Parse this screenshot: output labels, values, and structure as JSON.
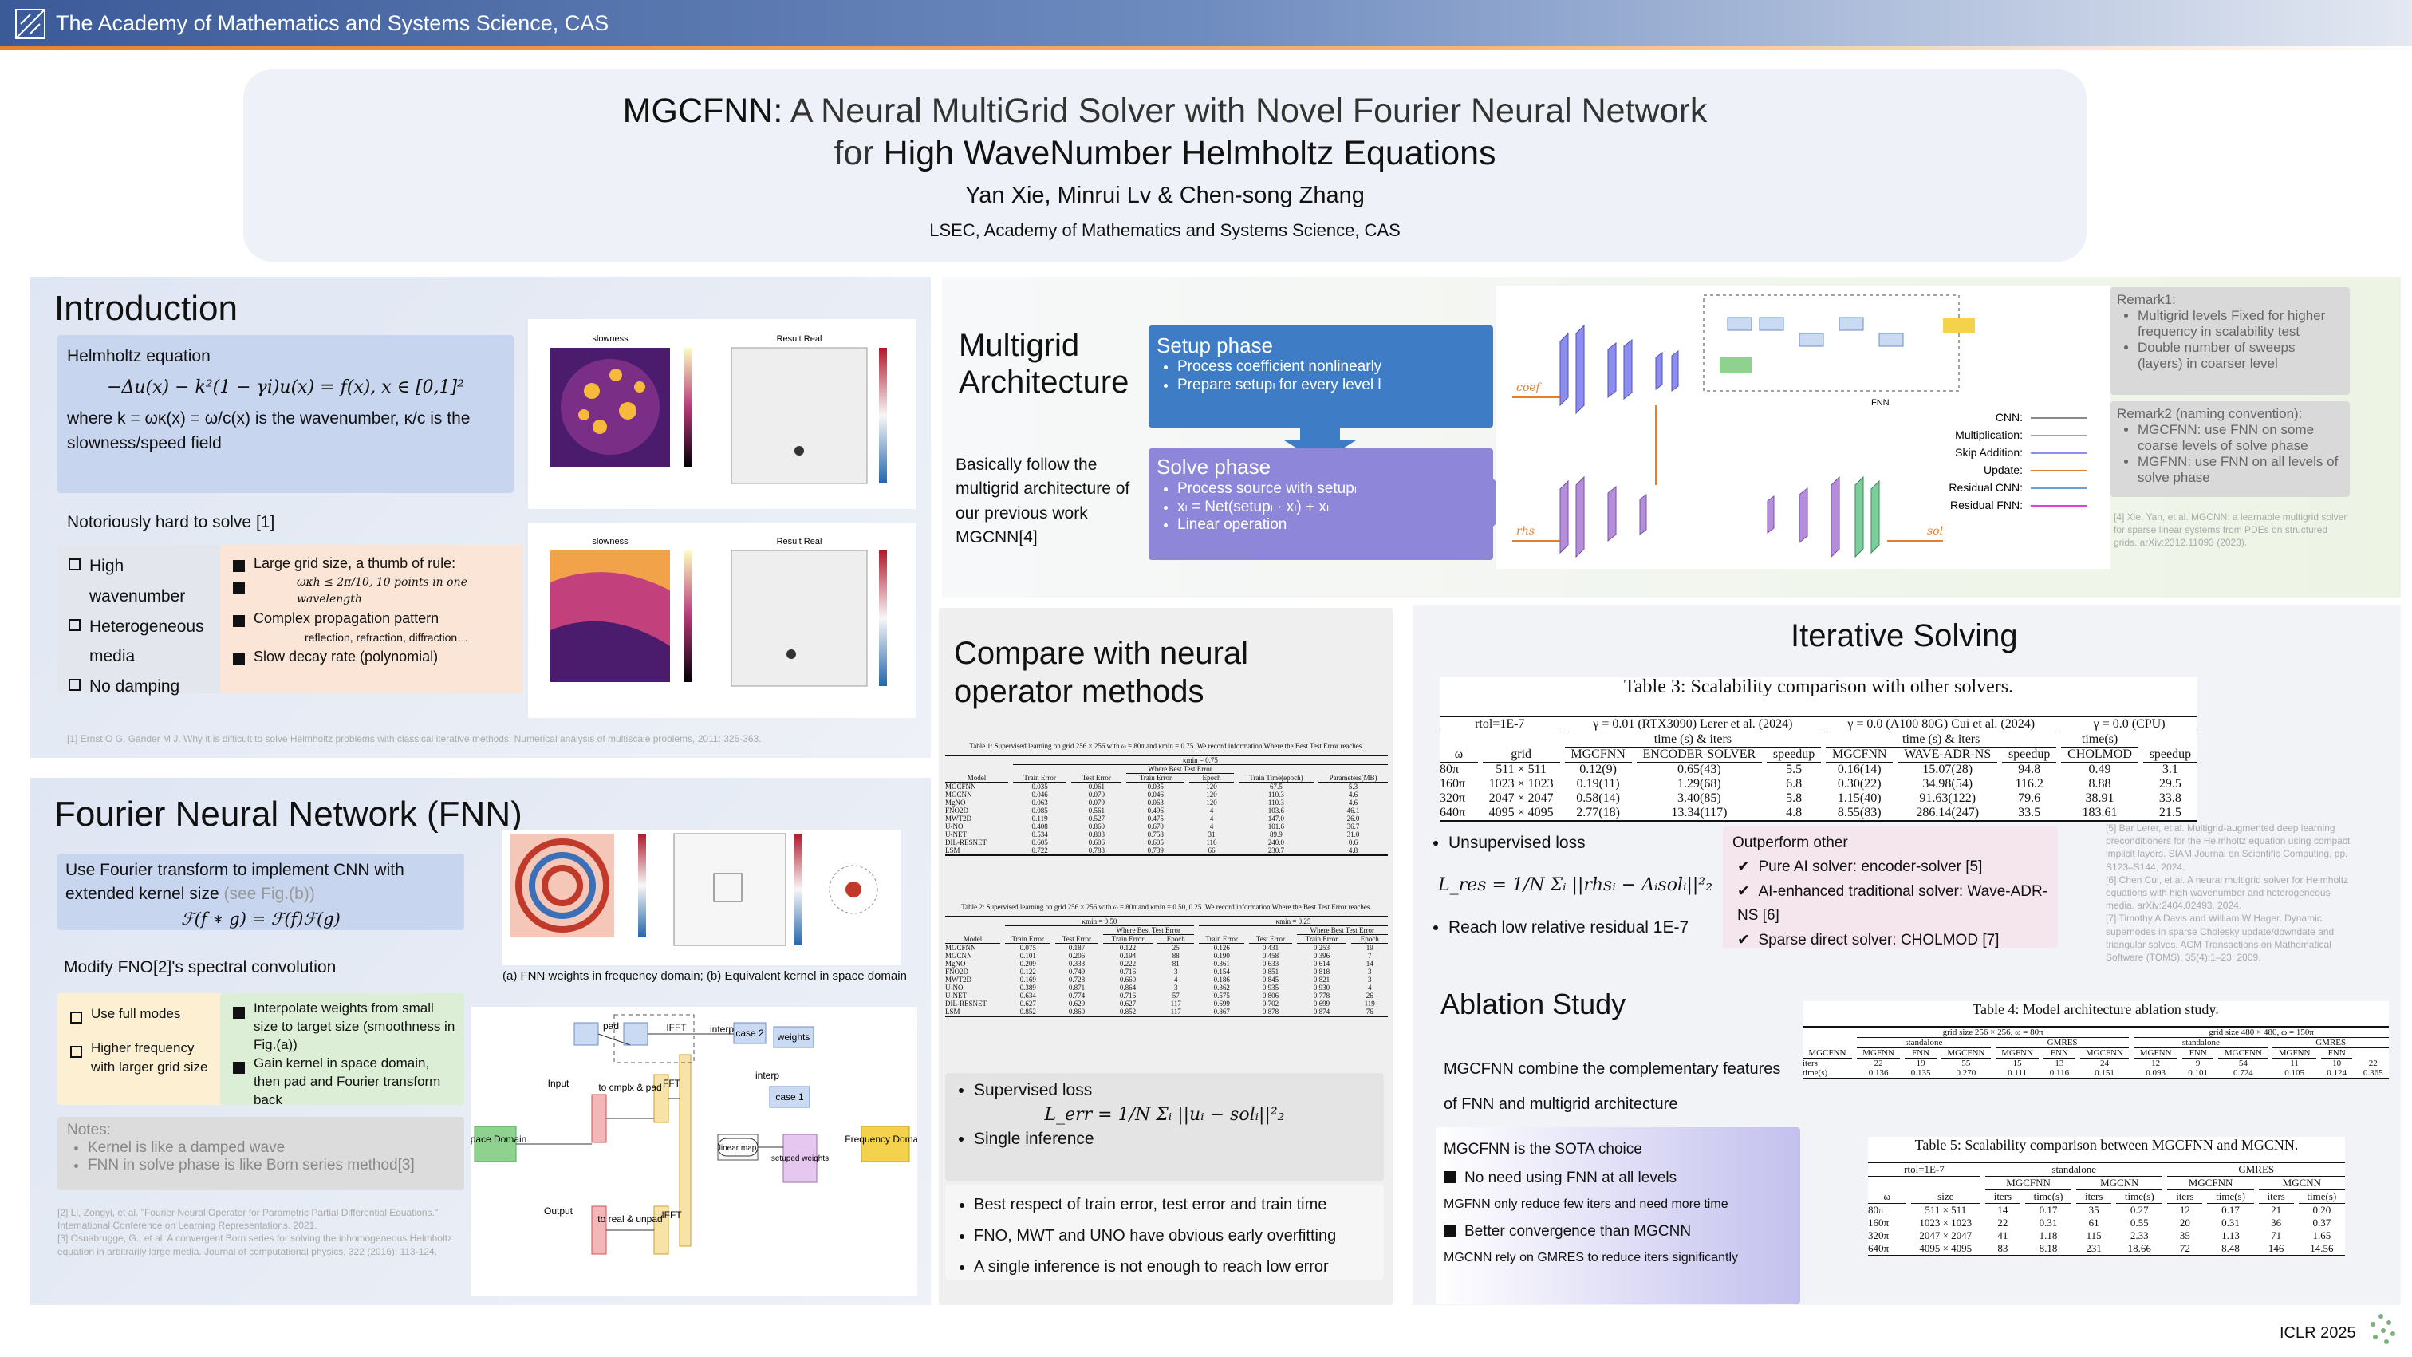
{
  "header": {
    "institution": "The Academy of Mathematics and Systems Science, CAS"
  },
  "title": {
    "line1_name": "MGCFNN:",
    "line1_rest": "A Neural MultiGrid Solver with Novel Fourier Neural Network",
    "line2_prefix": "for",
    "line2_emph": "High WaveNumber Helmholtz Equations",
    "authors": "Yan Xie, Minrui Lv & Chen-song Zhang",
    "affiliation": "LSEC, Academy of Mathematics and Systems Science, CAS"
  },
  "introduction": {
    "heading": "Introduction",
    "eq_label": "Helmholtz equation",
    "equation": "−Δu(x) − k²(1 − γi)u(x) = f(x), x ∈ [0,1]²",
    "where": "where k = ωκ(x) = ω/c(x) is the wavenumber, κ/c is the slowness/speed field",
    "hard": "Notoriously hard to solve [1]",
    "hard_items": [
      "High wavenumber",
      "Heterogeneous media",
      "No damping"
    ],
    "reasons": [
      "Large grid size, a thumb of rule:",
      "Complex propagation pattern",
      "Slow decay rate (polynomial)"
    ],
    "reason_rule": "ωκh ≤ 2π/10, 10 points in one wavelength",
    "reason_detail": "reflection, refraction, diffraction…",
    "plot_titles": [
      "slowness",
      "Result Real",
      "slowness",
      "Result Real"
    ],
    "ref": "[1] Ernst O G, Gander M J. Why it is difficult to solve Helmholtz problems with classical iterative methods. Numerical analysis of multiscale problems, 2011: 325-363."
  },
  "fnn": {
    "heading": "Fourier Neural Network (FNN)",
    "box1": "Use Fourier transform to implement CNN with extended kernel size",
    "box1_ref": "(see Fig.(b))",
    "equation": "ℱ(f ∗ g) = ℱ(f)ℱ(g)",
    "modify": "Modify FNO[2]'s spectral convolution",
    "left_items": [
      "Use full modes",
      "Higher frequency with larger grid size"
    ],
    "right_items": [
      "Interpolate weights from small size to target size (smoothness in Fig.(a))",
      "Gain kernel in space domain, then pad and Fourier transform back"
    ],
    "caption": "(a) FNN weights in frequency domain; (b) Equivalent kernel in space domain",
    "notes_title": "Notes:",
    "notes": [
      "Kernel is like a damped wave",
      "FNN in solve phase is like Born series method[3]"
    ],
    "refs": [
      "[2] Li, Zongyi, et al. \"Fourier Neural Operator for Parametric Partial Differential Equations.\" International Conference on Learning Representations. 2021.",
      "[3] Osnabrugge, G., et al. A convergent Born series for solving the inhomogeneous Helmholtz equation in arbitrarily large media. Journal of computational physics, 322 (2016): 113-124."
    ],
    "diagram": {
      "input": "Input",
      "to_cmplx": "to cmplx & pad",
      "fft": "FFT",
      "pad": "pad",
      "ifft_top": "IFFT",
      "interp_top": "interp",
      "case2": "case 2",
      "weights": "weights",
      "interp_mid": "interp",
      "case1": "case 1",
      "linear_map": "linear map",
      "setuped": "setuped weights",
      "output": "Output",
      "to_real": "to real & unpad",
      "ifft_bottom": "IFFT",
      "space": "Space Domain",
      "frequency": "Frequency Domain"
    }
  },
  "multigrid": {
    "heading": "Multigrid Architecture",
    "text": "Basically follow the multigrid architecture of our previous work MGCNN[4]",
    "setup_title": "Setup phase",
    "setup_items": [
      "Process coefficient nonlinearly",
      "Prepare setupₗ for every level l"
    ],
    "solve_title": "Solve phase",
    "solve_items": [
      "Process source with setupₗ",
      "xₗ = Net(setupₗ · xₗ) + xₗ",
      "Linear operation"
    ],
    "inputs": [
      "coef",
      "rhs",
      "sol"
    ],
    "fnn_label": "FNN",
    "legend": [
      "CNN:",
      "Multiplication:",
      "Skip Addition:",
      "Update:",
      "Residual CNN:",
      "Residual FNN:"
    ],
    "remark1_title": "Remark1:",
    "remark1_items": [
      "Multigrid levels Fixed for higher frequency in scalability test",
      "Double number of sweeps (layers) in coarser level"
    ],
    "remark2_title": "Remark2 (naming convention):",
    "remark2_items": [
      "MGCFNN: use FNN on some coarse levels of solve phase",
      "MGFNN: use FNN on all levels of solve phase"
    ],
    "ref": "[4] Xie, Yan, et al. MGCNN: a learnable multigrid solver for sparse linear systems from PDEs on structured grids. arXiv:2312.11093 (2023)."
  },
  "compare": {
    "heading": "Compare with neural operator methods",
    "table1": {
      "caption": "Table 1: Supervised learning on grid 256 × 256 with ω = 80π and κmin = 0.75. We record information Where the Best Test Error reaches.",
      "head": [
        [
          "κmin = 0.75"
        ],
        [
          "Where Best Test Error"
        ],
        [
          "Model",
          "Train Error",
          "Test Error",
          "Train Error",
          "Epoch",
          "Train Time(epoch)",
          "Parameters(MB)"
        ]
      ],
      "rows": [
        [
          "MGCFNN",
          "0.035",
          "0.061",
          "0.035",
          "120",
          "67.5",
          "5.3"
        ],
        [
          "MGCNN",
          "0.046",
          "0.070",
          "0.046",
          "120",
          "110.3",
          "4.6"
        ],
        [
          "MgNO",
          "0.063",
          "0.079",
          "0.063",
          "120",
          "110.3",
          "4.6"
        ],
        [
          "FNO2D",
          "0.085",
          "0.561",
          "0.496",
          "4",
          "103.6",
          "46.1"
        ],
        [
          "MWT2D",
          "0.119",
          "0.527",
          "0.475",
          "4",
          "147.0",
          "26.0"
        ],
        [
          "U-NO",
          "0.408",
          "0.860",
          "0.670",
          "4",
          "101.6",
          "36.7"
        ],
        [
          "U-NET",
          "0.534",
          "0.803",
          "0.758",
          "31",
          "89.9",
          "31.0"
        ],
        [
          "DIL-RESNET",
          "0.605",
          "0.606",
          "0.605",
          "116",
          "240.0",
          "0.6"
        ],
        [
          "LSM",
          "0.722",
          "0.783",
          "0.739",
          "66",
          "230.7",
          "4.8"
        ]
      ]
    },
    "table2": {
      "caption": "Table 2: Supervised learning on grid 256 × 256 with ω = 80π and κmin = 0.50, 0.25. We record information Where the Best Test Error reaches.",
      "head": [
        [
          "κmin = 0.50",
          "κmin = 0.25"
        ],
        [
          "Where Best Test Error",
          "Where Best Test Error"
        ],
        [
          "Model",
          "Train Error",
          "Test Error",
          "Train Error",
          "Epoch",
          "Train Error",
          "Test Error",
          "Train Error",
          "Epoch"
        ]
      ],
      "rows": [
        [
          "MGCFNN",
          "0.075",
          "0.187",
          "0.122",
          "25",
          "0.126",
          "0.431",
          "0.253",
          "19"
        ],
        [
          "MGCNN",
          "0.101",
          "0.206",
          "0.194",
          "88",
          "0.190",
          "0.458",
          "0.396",
          "7"
        ],
        [
          "MgNO",
          "0.209",
          "0.333",
          "0.222",
          "81",
          "0.361",
          "0.633",
          "0.614",
          "14"
        ],
        [
          "FNO2D",
          "0.122",
          "0.749",
          "0.716",
          "3",
          "0.154",
          "0.851",
          "0.818",
          "3"
        ],
        [
          "MWT2D",
          "0.169",
          "0.728",
          "0.660",
          "4",
          "0.186",
          "0.845",
          "0.821",
          "3"
        ],
        [
          "U-NO",
          "0.389",
          "0.871",
          "0.864",
          "3",
          "0.362",
          "0.935",
          "0.930",
          "4"
        ],
        [
          "U-NET",
          "0.634",
          "0.774",
          "0.716",
          "57",
          "0.575",
          "0.806",
          "0.778",
          "26"
        ],
        [
          "DIL-RESNET",
          "0.627",
          "0.629",
          "0.627",
          "117",
          "0.699",
          "0.702",
          "0.699",
          "119"
        ],
        [
          "LSM",
          "0.852",
          "0.860",
          "0.852",
          "117",
          "0.867",
          "0.878",
          "0.874",
          "76"
        ]
      ]
    },
    "supervised": "Supervised loss",
    "loss": "L_err = 1/N Σᵢ ||uᵢ − solᵢ||²₂",
    "single": "Single inference",
    "bullets": [
      "Best respect of train error, test error and train time",
      "FNO, MWT and UNO have obvious early overfitting",
      "A single inference is not enough to reach low error"
    ]
  },
  "iterative": {
    "heading": "Iterative Solving",
    "table3": {
      "caption": "Table 3: Scalability comparison with other solvers.",
      "head": [
        [
          "rtol=1E-7",
          "γ = 0.01 (RTX3090) Lerer et al. (2024)",
          "γ = 0.0 (A100 80G) Cui et al. (2024)",
          "γ = 0.0 (CPU)"
        ],
        [
          "time (s) & iters",
          "time (s) & iters",
          "time(s)"
        ],
        [
          "ω",
          "grid",
          "MGCFNN",
          "ENCODER-SOLVER",
          "speedup",
          "MGCFNN",
          "WAVE-ADR-NS",
          "speedup",
          "CHOLMOD",
          "speedup"
        ]
      ],
      "rows": [
        [
          "80π",
          "511 × 511",
          "0.12(9)",
          "0.65(43)",
          "5.5",
          "0.16(14)",
          "15.07(28)",
          "94.8",
          "0.49",
          "3.1"
        ],
        [
          "160π",
          "1023 × 1023",
          "0.19(11)",
          "1.29(68)",
          "6.8",
          "0.30(22)",
          "34.98(54)",
          "116.2",
          "8.88",
          "29.5"
        ],
        [
          "320π",
          "2047 × 2047",
          "0.58(14)",
          "3.40(85)",
          "5.8",
          "1.15(40)",
          "91.63(122)",
          "79.6",
          "38.91",
          "33.8"
        ],
        [
          "640π",
          "4095 × 4095",
          "2.77(18)",
          "13.34(117)",
          "4.8",
          "8.55(83)",
          "286.14(247)",
          "33.5",
          "183.61",
          "21.5"
        ]
      ]
    },
    "unsupervised": "Unsupervised loss",
    "loss": "L_res = 1/N Σᵢ ||rhsᵢ − Aᵢsolᵢ||²₂",
    "reach": "Reach low relative residual 1E-7",
    "outperform_title": "Outperform other",
    "outperform_items": [
      "Pure AI solver: encoder-solver [5]",
      "AI-enhanced traditional solver: Wave-ADR-NS [6]",
      "Sparse direct solver: CHOLMOD [7]"
    ],
    "refs": [
      "[5] Bar Lerer, et al. Multigrid-augmented deep learning preconditioners for the Helmholtz equation using compact implicit layers. SIAM Journal on Scientific Computing, pp. S123–S144, 2024.",
      "[6] Chen Cui, et al. A neural multigrid solver for Helmholtz equations with high wavenumber and heterogeneous media. arXiv:2404.02493, 2024.",
      "[7] Timothy A Davis and William W Hager. Dynamic supernodes in sparse Cholesky update/downdate and triangular solves. ACM Transactions on Mathematical Software (TOMS), 35(4):1–23, 2009."
    ]
  },
  "ablation": {
    "heading": "Ablation Study",
    "text": "MGCFNN combine the complementary features of FNN and multigrid architecture",
    "sota": "MGCFNN is the SOTA choice",
    "items": [
      "No need using FNN at all levels",
      "Better convergence than MGCNN"
    ],
    "details": [
      "MGFNN only reduce few iters and need more time",
      "MGCNN rely on GMRES to reduce iters significantly"
    ],
    "table4": {
      "caption": "Table 4: Model architecture ablation study.",
      "head": [
        [
          "grid size 256 × 256, ω = 80π",
          "grid size 480 × 480, ω = 150π"
        ],
        [
          "standalone",
          "GMRES",
          "standalone",
          "GMRES"
        ],
        [
          "MGCFNN",
          "MGFNN",
          "FNN",
          "MGCFNN",
          "MGFNN",
          "FNN",
          "MGCFNN",
          "MGFNN",
          "FNN",
          "MGCFNN",
          "MGFNN",
          "FNN"
        ]
      ],
      "rows": [
        [
          "iters",
          "22",
          "19",
          "55",
          "15",
          "13",
          "24",
          "12",
          "9",
          "54",
          "11",
          "10",
          "22"
        ],
        [
          "time(s)",
          "0.136",
          "0.135",
          "0.270",
          "0.111",
          "0.116",
          "0.151",
          "0.093",
          "0.101",
          "0.724",
          "0.105",
          "0.124",
          "0.365"
        ]
      ]
    },
    "table5": {
      "caption": "Table 5: Scalability comparison between MGCFNN and MGCNN.",
      "head": [
        [
          "rtol=1E-7",
          "standalone",
          "GMRES"
        ],
        [
          "MGCFNN",
          "MGCNN",
          "MGCFNN",
          "MGCNN"
        ],
        [
          "ω",
          "size",
          "iters",
          "time(s)",
          "iters",
          "time(s)",
          "iters",
          "time(s)",
          "iters",
          "time(s)"
        ]
      ],
      "rows": [
        [
          "80π",
          "511 × 511",
          "14",
          "0.17",
          "35",
          "0.27",
          "12",
          "0.17",
          "21",
          "0.20"
        ],
        [
          "160π",
          "1023 × 1023",
          "22",
          "0.31",
          "61",
          "0.55",
          "20",
          "0.31",
          "36",
          "0.37"
        ],
        [
          "320π",
          "2047 × 2047",
          "41",
          "1.18",
          "115",
          "2.33",
          "35",
          "1.13",
          "71",
          "1.65"
        ],
        [
          "640π",
          "4095 × 4095",
          "83",
          "8.18",
          "231",
          "18.66",
          "72",
          "8.48",
          "146",
          "14.56"
        ]
      ]
    }
  },
  "footer": "ICLR 2025"
}
